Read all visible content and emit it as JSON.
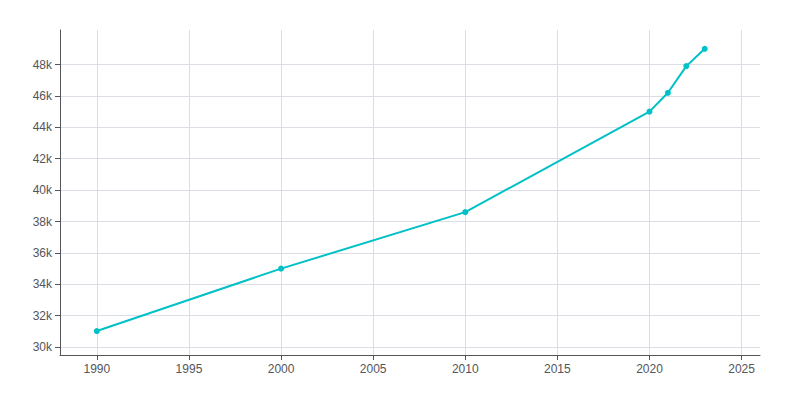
{
  "chart_data": {
    "type": "line",
    "x": [
      1990,
      2000,
      2010,
      2020,
      2021,
      2022,
      2023
    ],
    "values": [
      31025,
      35000,
      38600,
      45000,
      46200,
      47900,
      49000
    ],
    "color": "#00c0c8",
    "marker": "circle",
    "xlim": [
      1988,
      2026
    ],
    "ylim": [
      29500,
      50200
    ],
    "xticks": [
      1990,
      1995,
      2000,
      2005,
      2010,
      2015,
      2020,
      2025
    ],
    "yticks": [
      {
        "value": 30000,
        "label": "30k"
      },
      {
        "value": 32000,
        "label": "32k"
      },
      {
        "value": 34000,
        "label": "34k"
      },
      {
        "value": 36000,
        "label": "36k"
      },
      {
        "value": 38000,
        "label": "38k"
      },
      {
        "value": 40000,
        "label": "40k"
      },
      {
        "value": 42000,
        "label": "42k"
      },
      {
        "value": 44000,
        "label": "44k"
      },
      {
        "value": 46000,
        "label": "46k"
      },
      {
        "value": 48000,
        "label": "48k"
      }
    ],
    "grid": true
  }
}
